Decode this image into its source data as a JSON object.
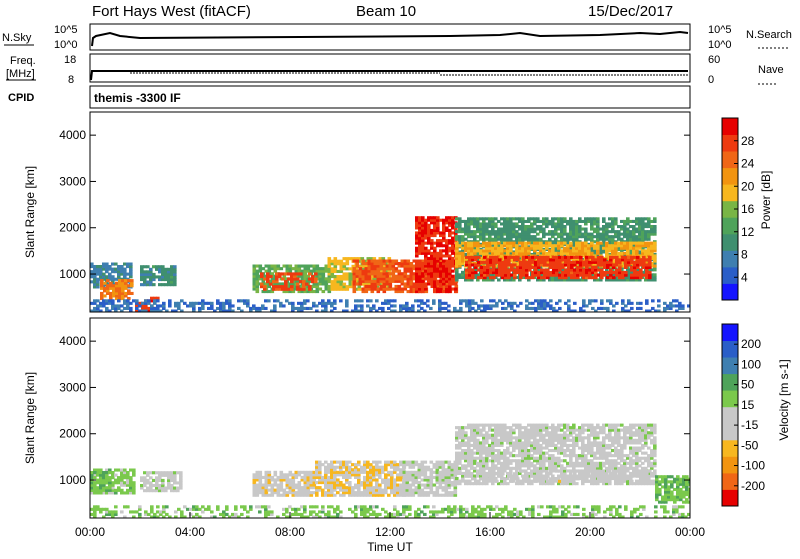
{
  "header": {
    "station": "Fort Hays West (fitACF)",
    "beam": "Beam 10",
    "date": "15/Dec/2017"
  },
  "strips": {
    "nsky_label": "N.Sky",
    "nsky_ticks": [
      "10^5",
      "10^0"
    ],
    "nsearch_label": "N.Search",
    "nsearch_ticks": [
      "10^5",
      "10^0"
    ],
    "freq_label_1": "Freq.",
    "freq_label_2": "[MHz]",
    "freq_ticks": [
      "18",
      "8"
    ],
    "nave_label": "Nave",
    "nave_ticks": [
      "60",
      "0"
    ],
    "cpid_label": "CPID",
    "cpid_value": "themis -3300 IF"
  },
  "colors": {
    "power_scale": [
      "#1414ff",
      "#2a5ec8",
      "#3f7fb0",
      "#3f8f6f",
      "#4fa35a",
      "#79b545",
      "#f7b71f",
      "#f29410",
      "#f06616",
      "#ee3a10",
      "#e60000"
    ],
    "velocity_scale": [
      "#e60000",
      "#f06616",
      "#f29410",
      "#f7b71f",
      "#c8c8c8",
      "#c8c8c8",
      "#7bc94c",
      "#4fa35a",
      "#3f7fb0",
      "#2a5ec8",
      "#1414ff"
    ]
  },
  "chart_data": [
    {
      "type": "heatmap",
      "panel": "power",
      "ylabel": "Slant Range [km]",
      "yticks": [
        "4000",
        "3000",
        "2000",
        "1000"
      ],
      "ylim": [
        180,
        4500
      ],
      "xlim": [
        0,
        24
      ],
      "colorbar_label": "Power [dB]",
      "colorbar_ticks": [
        "28",
        "24",
        "20",
        "16",
        "12",
        "8",
        "4"
      ],
      "colorbar_range": [
        0,
        32
      ],
      "features": [
        {
          "t0": 0.0,
          "t1": 1.6,
          "r0": 700,
          "r1": 1250,
          "level": 8
        },
        {
          "t0": 2.0,
          "t1": 3.4,
          "r0": 750,
          "r1": 1150,
          "level": 10
        },
        {
          "t0": 0.4,
          "t1": 1.7,
          "r0": 450,
          "r1": 850,
          "level": 24
        },
        {
          "t0": 1.8,
          "t1": 2.7,
          "r0": 180,
          "r1": 500,
          "level": 28
        },
        {
          "t0": 6.5,
          "t1": 9.5,
          "r0": 600,
          "r1": 1200,
          "level": 14
        },
        {
          "t0": 6.8,
          "t1": 9.0,
          "r0": 650,
          "r1": 1000,
          "level": 27
        },
        {
          "t0": 9.5,
          "t1": 12.0,
          "r0": 650,
          "r1": 1350,
          "level": 18
        },
        {
          "t0": 10.5,
          "t1": 14.6,
          "r0": 600,
          "r1": 1300,
          "level": 26
        },
        {
          "t0": 13.0,
          "t1": 14.6,
          "r0": 600,
          "r1": 2200,
          "level": 29
        },
        {
          "t0": 14.6,
          "t1": 22.6,
          "r0": 850,
          "r1": 2200,
          "level": 11
        },
        {
          "t0": 14.6,
          "t1": 22.6,
          "r0": 1150,
          "r1": 1700,
          "level": 20
        },
        {
          "t0": 15.0,
          "t1": 22.4,
          "r0": 900,
          "r1": 1350,
          "level": 28
        },
        {
          "t0": 0.0,
          "t1": 24.0,
          "r0": 180,
          "r1": 450,
          "level": 6
        }
      ]
    },
    {
      "type": "heatmap",
      "panel": "velocity",
      "ylabel": "Slant Range [km]",
      "yticks": [
        "4000",
        "3000",
        "2000",
        "1000"
      ],
      "ylim": [
        180,
        4500
      ],
      "xlim": [
        0,
        24
      ],
      "colorbar_label": "Velocity [m s-1]",
      "colorbar_ticks": [
        "200",
        "100",
        "50",
        "15",
        "-15",
        "-50",
        "-100",
        "-200"
      ],
      "colorbar_range": [
        -250,
        250
      ],
      "xlabel": "Time UT",
      "xticks": [
        "00:00",
        "04:00",
        "08:00",
        "12:00",
        "16:00",
        "20:00",
        "00:00"
      ],
      "features": [
        {
          "t0": 0.0,
          "t1": 1.8,
          "r0": 700,
          "r1": 1250,
          "level": 40
        },
        {
          "t0": 0.0,
          "t1": 0.8,
          "r0": 700,
          "r1": 1150,
          "level": 60
        },
        {
          "t0": 2.0,
          "t1": 3.6,
          "r0": 750,
          "r1": 1150,
          "level": 0
        },
        {
          "t0": 6.5,
          "t1": 9.0,
          "r0": 650,
          "r1": 1200,
          "level": -50
        },
        {
          "t0": 9.0,
          "t1": 12.5,
          "r0": 650,
          "r1": 1400,
          "level": -60
        },
        {
          "t0": 12.5,
          "t1": 14.6,
          "r0": 650,
          "r1": 1400,
          "level": 0
        },
        {
          "t0": 14.6,
          "t1": 22.6,
          "r0": 900,
          "r1": 2200,
          "level": 0
        },
        {
          "t0": 15.0,
          "t1": 22.4,
          "r0": 950,
          "r1": 1200,
          "level": -40
        },
        {
          "t0": 0.0,
          "t1": 24.0,
          "r0": 180,
          "r1": 420,
          "level": 45
        },
        {
          "t0": 22.6,
          "t1": 24.0,
          "r0": 500,
          "r1": 1100,
          "level": 60
        }
      ]
    }
  ]
}
